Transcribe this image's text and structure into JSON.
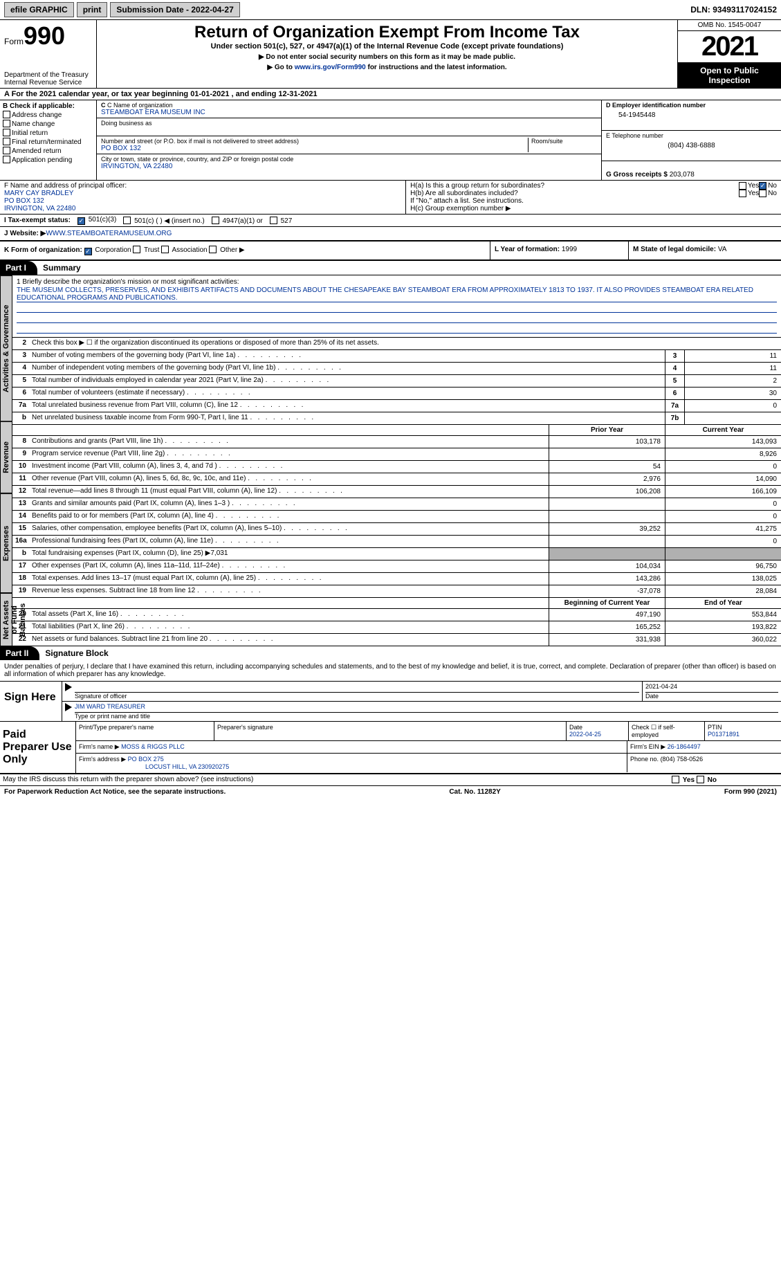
{
  "topbar": {
    "efile": "efile GRAPHIC",
    "print": "print",
    "submission": "Submission Date - 2022-04-27",
    "dln": "DLN: 93493117024152"
  },
  "header": {
    "form": "Form",
    "num": "990",
    "dept": "Department of the Treasury\nInternal Revenue Service",
    "title": "Return of Organization Exempt From Income Tax",
    "sub": "Under section 501(c), 527, or 4947(a)(1) of the Internal Revenue Code (except private foundations)",
    "note1": "▶ Do not enter social security numbers on this form as it may be made public.",
    "note2_pre": "▶ Go to ",
    "note2_link": "www.irs.gov/Form990",
    "note2_post": " for instructions and the latest information.",
    "omb": "OMB No. 1545-0047",
    "year": "2021",
    "open": "Open to Public Inspection"
  },
  "row_a": "A For the 2021 calendar year, or tax year beginning 01-01-2021    , and ending 12-31-2021",
  "col_b": {
    "title": "B Check if applicable:",
    "opts": [
      "Address change",
      "Name change",
      "Initial return",
      "Final return/terminated",
      "Amended return",
      "Application pending"
    ]
  },
  "col_c": {
    "name_label": "C Name of organization",
    "name": "STEAMBOAT ERA MUSEUM INC",
    "dba_label": "Doing business as",
    "dba": "",
    "addr_label": "Number and street (or P.O. box if mail is not delivered to street address)",
    "room_label": "Room/suite",
    "addr": "PO BOX 132",
    "city_label": "City or town, state or province, country, and ZIP or foreign postal code",
    "city": "IRVINGTON, VA  22480"
  },
  "col_d": {
    "ein_label": "D Employer identification number",
    "ein": "54-1945448",
    "tel_label": "E Telephone number",
    "tel": "(804) 438-6888",
    "gross_label": "G Gross receipts $",
    "gross": "203,078"
  },
  "officer": {
    "label": "F Name and address of principal officer:",
    "name": "MARY CAY BRADLEY",
    "addr1": "PO BOX 132",
    "addr2": "IRVINGTON, VA  22480"
  },
  "h": {
    "a": "H(a)  Is this a group return for subordinates?",
    "b": "H(b)  Are all subordinates included?",
    "bnote": "If \"No,\" attach a list. See instructions.",
    "c": "H(c)  Group exemption number ▶",
    "yes": "Yes",
    "no": "No"
  },
  "i": {
    "label": "I   Tax-exempt status:",
    "o1": "501(c)(3)",
    "o2": "501(c) (  ) ◀ (insert no.)",
    "o3": "4947(a)(1) or",
    "o4": "527"
  },
  "j": {
    "label": "J   Website: ▶",
    "val": " WWW.STEAMBOATERAMUSEUM.ORG"
  },
  "k": {
    "label": "K Form of organization:",
    "corp": "Corporation",
    "trust": "Trust",
    "assoc": "Association",
    "other": "Other ▶"
  },
  "l": {
    "label": "L Year of formation:",
    "val": "1999"
  },
  "m": {
    "label": "M State of legal domicile:",
    "val": "VA"
  },
  "part1": {
    "tab": "Part I",
    "title": "Summary"
  },
  "mission": {
    "label": "1   Briefly describe the organization's mission or most significant activities:",
    "text": "THE MUSEUM COLLECTS, PRESERVES, AND EXHIBITS ARTIFACTS AND DOCUMENTS ABOUT THE CHESAPEAKE BAY STEAMBOAT ERA FROM APPROXIMATELY 1813 TO 1937. IT ALSO PROVIDES STEAMBOAT ERA RELATED EDUCATIONAL PROGRAMS AND PUBLICATIONS."
  },
  "line2": "Check this box ▶ ☐  if the organization discontinued its operations or disposed of more than 25% of its net assets.",
  "governance_rows": [
    {
      "n": "3",
      "d": "Number of voting members of the governing body (Part VI, line 1a)",
      "box": "3",
      "v": "11"
    },
    {
      "n": "4",
      "d": "Number of independent voting members of the governing body (Part VI, line 1b)",
      "box": "4",
      "v": "11"
    },
    {
      "n": "5",
      "d": "Total number of individuals employed in calendar year 2021 (Part V, line 2a)",
      "box": "5",
      "v": "2"
    },
    {
      "n": "6",
      "d": "Total number of volunteers (estimate if necessary)",
      "box": "6",
      "v": "30"
    },
    {
      "n": "7a",
      "d": "Total unrelated business revenue from Part VIII, column (C), line 12",
      "box": "7a",
      "v": "0"
    },
    {
      "n": "b",
      "d": "Net unrelated business taxable income from Form 990-T, Part I, line 11",
      "box": "7b",
      "v": ""
    }
  ],
  "twocol_header": {
    "prior": "Prior Year",
    "current": "Current Year",
    "begin": "Beginning of Current Year",
    "end": "End of Year"
  },
  "revenue_rows": [
    {
      "n": "8",
      "d": "Contributions and grants (Part VIII, line 1h)",
      "p": "103,178",
      "c": "143,093"
    },
    {
      "n": "9",
      "d": "Program service revenue (Part VIII, line 2g)",
      "p": "",
      "c": "8,926"
    },
    {
      "n": "10",
      "d": "Investment income (Part VIII, column (A), lines 3, 4, and 7d )",
      "p": "54",
      "c": "0"
    },
    {
      "n": "11",
      "d": "Other revenue (Part VIII, column (A), lines 5, 6d, 8c, 9c, 10c, and 11e)",
      "p": "2,976",
      "c": "14,090"
    },
    {
      "n": "12",
      "d": "Total revenue—add lines 8 through 11 (must equal Part VIII, column (A), line 12)",
      "p": "106,208",
      "c": "166,109"
    }
  ],
  "expense_rows": [
    {
      "n": "13",
      "d": "Grants and similar amounts paid (Part IX, column (A), lines 1–3 )",
      "p": "",
      "c": "0"
    },
    {
      "n": "14",
      "d": "Benefits paid to or for members (Part IX, column (A), line 4)",
      "p": "",
      "c": "0"
    },
    {
      "n": "15",
      "d": "Salaries, other compensation, employee benefits (Part IX, column (A), lines 5–10)",
      "p": "39,252",
      "c": "41,275"
    },
    {
      "n": "16a",
      "d": "Professional fundraising fees (Part IX, column (A), line 11e)",
      "p": "",
      "c": "0"
    },
    {
      "n": "b",
      "d": "Total fundraising expenses (Part IX, column (D), line 25) ▶7,031",
      "gray": true
    },
    {
      "n": "17",
      "d": "Other expenses (Part IX, column (A), lines 11a–11d, 11f–24e)",
      "p": "104,034",
      "c": "96,750"
    },
    {
      "n": "18",
      "d": "Total expenses. Add lines 13–17 (must equal Part IX, column (A), line 25)",
      "p": "143,286",
      "c": "138,025"
    },
    {
      "n": "19",
      "d": "Revenue less expenses. Subtract line 18 from line 12",
      "p": "-37,078",
      "c": "28,084"
    }
  ],
  "netassets_rows": [
    {
      "n": "20",
      "d": "Total assets (Part X, line 16)",
      "p": "497,190",
      "c": "553,844"
    },
    {
      "n": "21",
      "d": "Total liabilities (Part X, line 26)",
      "p": "165,252",
      "c": "193,822"
    },
    {
      "n": "22",
      "d": "Net assets or fund balances. Subtract line 21 from line 20",
      "p": "331,938",
      "c": "360,022"
    }
  ],
  "part2": {
    "tab": "Part II",
    "title": "Signature Block"
  },
  "sig_text": "Under penalties of perjury, I declare that I have examined this return, including accompanying schedules and statements, and to the best of my knowledge and belief, it is true, correct, and complete. Declaration of preparer (other than officer) is based on all information of which preparer has any knowledge.",
  "sign_here": "Sign Here",
  "sig": {
    "sig_label": "Signature of officer",
    "date": "2021-04-24",
    "date_label": "Date",
    "name": "JIM WARD TREASURER",
    "name_label": "Type or print name and title"
  },
  "paid_label": "Paid Preparer Use Only",
  "paid": {
    "h1": "Print/Type preparer's name",
    "h2": "Preparer's signature",
    "h3": "Date",
    "h3v": "2022-04-25",
    "h4": "Check ☐ if self-employed",
    "h5": "PTIN",
    "h5v": "P01371891",
    "firm_label": "Firm's name    ▶",
    "firm": "MOSS & RIGGS PLLC",
    "ein_label": "Firm's EIN ▶",
    "ein": "26-1864497",
    "addr_label": "Firm's address ▶",
    "addr": "PO BOX 275",
    "addr2": "LOCUST HILL, VA  230920275",
    "phone_label": "Phone no.",
    "phone": "(804) 758-0526"
  },
  "discuss": "May the IRS discuss this return with the preparer shown above? (see instructions)",
  "footer": {
    "left": "For Paperwork Reduction Act Notice, see the separate instructions.",
    "mid": "Cat. No. 11282Y",
    "right": "Form 990 (2021)"
  },
  "vtabs": {
    "gov": "Activities & Governance",
    "rev": "Revenue",
    "exp": "Expenses",
    "na": "Net Assets or Fund Balances"
  }
}
